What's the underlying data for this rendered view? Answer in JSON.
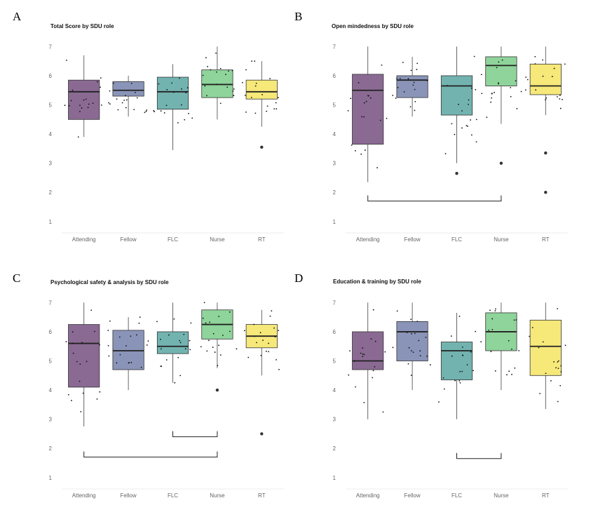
{
  "chart_data": [
    {
      "type": "box",
      "panel_label": "A",
      "title": "Total Score by SDU role",
      "xlabel": "",
      "ylabel": "",
      "categories": [
        "Attending",
        "Fellow",
        "FLC",
        "Nurse",
        "RT"
      ],
      "yticks": [
        1,
        2,
        3,
        4,
        5,
        6,
        7
      ],
      "ylim": [
        0.85,
        7.25
      ],
      "colors": [
        "#8a6a93",
        "#8a94b8",
        "#72b3b0",
        "#8fd49a",
        "#f6e879"
      ],
      "boxes": [
        {
          "q1": 4.5,
          "median": 5.45,
          "q3": 5.85,
          "whisker_low": 3.9,
          "whisker_high": 6.7,
          "outliers": []
        },
        {
          "q1": 5.3,
          "median": 5.5,
          "q3": 5.8,
          "whisker_low": 4.6,
          "whisker_high": 6.0,
          "outliers": []
        },
        {
          "q1": 4.85,
          "median": 5.45,
          "q3": 5.95,
          "whisker_low": 3.45,
          "whisker_high": 6.4,
          "outliers": []
        },
        {
          "q1": 5.25,
          "median": 5.7,
          "q3": 6.2,
          "whisker_low": 4.5,
          "whisker_high": 7.0,
          "outliers": []
        },
        {
          "q1": 5.2,
          "median": 5.45,
          "q3": 5.85,
          "whisker_low": 4.25,
          "whisker_high": 6.5,
          "outliers": [
            3.55
          ]
        }
      ],
      "significance_brackets": []
    },
    {
      "type": "box",
      "panel_label": "B",
      "title": "Open mindedness by SDU role",
      "xlabel": "",
      "ylabel": "",
      "categories": [
        "Attending",
        "Fellow",
        "FLC",
        "Nurse",
        "RT"
      ],
      "yticks": [
        1,
        2,
        3,
        4,
        5,
        6,
        7
      ],
      "ylim": [
        0.85,
        7.25
      ],
      "colors": [
        "#8a6a93",
        "#8a94b8",
        "#72b3b0",
        "#8fd49a",
        "#f6e879"
      ],
      "boxes": [
        {
          "q1": 3.65,
          "median": 5.5,
          "q3": 6.05,
          "whisker_low": 2.35,
          "whisker_high": 7.0,
          "outliers": []
        },
        {
          "q1": 5.25,
          "median": 5.85,
          "q3": 6.0,
          "whisker_low": 4.6,
          "whisker_high": 6.65,
          "outliers": []
        },
        {
          "q1": 4.65,
          "median": 5.65,
          "q3": 6.0,
          "whisker_low": 3.0,
          "whisker_high": 7.0,
          "outliers": [
            2.65
          ]
        },
        {
          "q1": 5.65,
          "median": 6.35,
          "q3": 6.65,
          "whisker_low": 4.35,
          "whisker_high": 7.0,
          "outliers": [
            3.0
          ]
        },
        {
          "q1": 5.35,
          "median": 5.65,
          "q3": 6.4,
          "whisker_low": 4.65,
          "whisker_high": 7.0,
          "outliers": [
            3.35,
            2.0
          ]
        }
      ],
      "significance_brackets": [
        {
          "from": 0,
          "to": 3,
          "y": 1.7
        }
      ]
    },
    {
      "type": "box",
      "panel_label": "C",
      "title": "Psychological safety & analysis by SDU role",
      "xlabel": "",
      "ylabel": "",
      "categories": [
        "Attending",
        "Fellow",
        "FLC",
        "Nurse",
        "RT"
      ],
      "yticks": [
        1,
        2,
        3,
        4,
        5,
        6,
        7
      ],
      "ylim": [
        0.85,
        7.25
      ],
      "colors": [
        "#8a6a93",
        "#8a94b8",
        "#72b3b0",
        "#8fd49a",
        "#f6e879"
      ],
      "boxes": [
        {
          "q1": 4.1,
          "median": 5.6,
          "q3": 6.25,
          "whisker_low": 2.75,
          "whisker_high": 7.0,
          "outliers": []
        },
        {
          "q1": 4.7,
          "median": 5.35,
          "q3": 6.05,
          "whisker_low": 4.0,
          "whisker_high": 6.5,
          "outliers": []
        },
        {
          "q1": 5.25,
          "median": 5.5,
          "q3": 6.0,
          "whisker_low": 4.25,
          "whisker_high": 7.0,
          "outliers": []
        },
        {
          "q1": 5.75,
          "median": 6.25,
          "q3": 6.75,
          "whisker_low": 4.75,
          "whisker_high": 7.0,
          "outliers": [
            4.0
          ]
        },
        {
          "q1": 5.45,
          "median": 5.85,
          "q3": 6.25,
          "whisker_low": 4.5,
          "whisker_high": 6.75,
          "outliers": [
            2.5
          ]
        }
      ],
      "significance_brackets": [
        {
          "from": 2,
          "to": 3,
          "y": 2.4
        },
        {
          "from": 0,
          "to": 3,
          "y": 1.7
        }
      ]
    },
    {
      "type": "box",
      "panel_label": "D",
      "title": "Education & training by SDU role",
      "xlabel": "",
      "ylabel": "",
      "categories": [
        "Attending",
        "Fellow",
        "FLC",
        "Nurse",
        "RT"
      ],
      "yticks": [
        1,
        2,
        3,
        4,
        5,
        6,
        7
      ],
      "ylim": [
        0.85,
        7.25
      ],
      "colors": [
        "#8a6a93",
        "#8a94b8",
        "#72b3b0",
        "#8fd49a",
        "#f6e879"
      ],
      "boxes": [
        {
          "q1": 4.7,
          "median": 5.0,
          "q3": 6.0,
          "whisker_low": 3.0,
          "whisker_high": 7.0,
          "outliers": []
        },
        {
          "q1": 5.0,
          "median": 6.0,
          "q3": 6.35,
          "whisker_low": 4.0,
          "whisker_high": 7.0,
          "outliers": []
        },
        {
          "q1": 4.35,
          "median": 5.35,
          "q3": 5.65,
          "whisker_low": 3.0,
          "whisker_high": 6.65,
          "outliers": []
        },
        {
          "q1": 5.35,
          "median": 6.0,
          "q3": 6.65,
          "whisker_low": 4.0,
          "whisker_high": 7.0,
          "outliers": []
        },
        {
          "q1": 4.5,
          "median": 5.5,
          "q3": 6.4,
          "whisker_low": 3.35,
          "whisker_high": 7.0,
          "outliers": []
        }
      ],
      "significance_brackets": [
        {
          "from": 2,
          "to": 3,
          "y": 1.65
        }
      ]
    }
  ]
}
